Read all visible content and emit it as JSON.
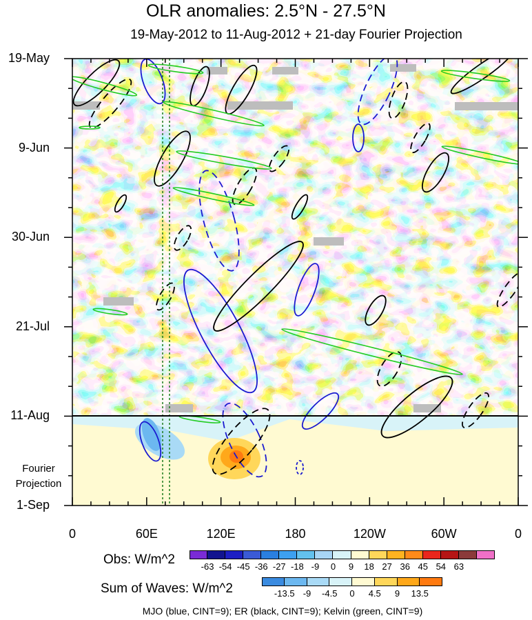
{
  "chart_data": {
    "type": "heatmap",
    "title": "OLR anomalies: 2.5°N - 27.5°N",
    "subtitle": "19-May-2012 to 11-Aug-2012 + 21-day Fourier Projection",
    "x_ticks": [
      "0",
      "60E",
      "120E",
      "180",
      "120W",
      "60W",
      "0"
    ],
    "x_tick_values": [
      0,
      60,
      120,
      180,
      240,
      300,
      360
    ],
    "y_ticks": [
      "19-May",
      "9-Jun",
      "30-Jun",
      "21-Jul",
      "11-Aug",
      "1-Sep"
    ],
    "y_tick_days": [
      0,
      21,
      42,
      63,
      84,
      105
    ],
    "projection_start_day": 84,
    "projection_label": "Fourier\nProjection",
    "reference_meridians_lon": [
      73,
      80
    ],
    "obs_colorbar": {
      "label": "Obs: W/m^2",
      "levels": [
        "-63",
        "-54",
        "-45",
        "-36",
        "-27",
        "-18",
        "-9",
        "0",
        "9",
        "18",
        "27",
        "36",
        "45",
        "54",
        "63"
      ],
      "colors": [
        "#7a2bd6",
        "#12148f",
        "#1d1fc3",
        "#3a5ad6",
        "#2a7fe0",
        "#3da0f0",
        "#63c1ee",
        "#a8d5f5",
        "#d8f3f8",
        "#fffad2",
        "#ffd75a",
        "#ffb320",
        "#ff8a1a",
        "#e9261c",
        "#b51515",
        "#8b3a3a",
        "#f070c8"
      ]
    },
    "waves_colorbar": {
      "label": "Sum of Waves: W/m^2",
      "levels": [
        "-13.5",
        "-9",
        "-4.5",
        "0",
        "4.5",
        "9",
        "13.5"
      ],
      "colors": [
        "#3a8be0",
        "#6cb8f0",
        "#a9daf6",
        "#d8f3f8",
        "#fffad2",
        "#ffd75a",
        "#ffa81a",
        "#ff7a10"
      ]
    },
    "footer": "MJO (blue, CINT=9); ER (black, CINT=9); Kelvin (green, CINT=9)",
    "wave_contours": {
      "mjo_color": "#1a1ad0",
      "er_color": "#000000",
      "kelvin_color": "#22cc22"
    }
  }
}
